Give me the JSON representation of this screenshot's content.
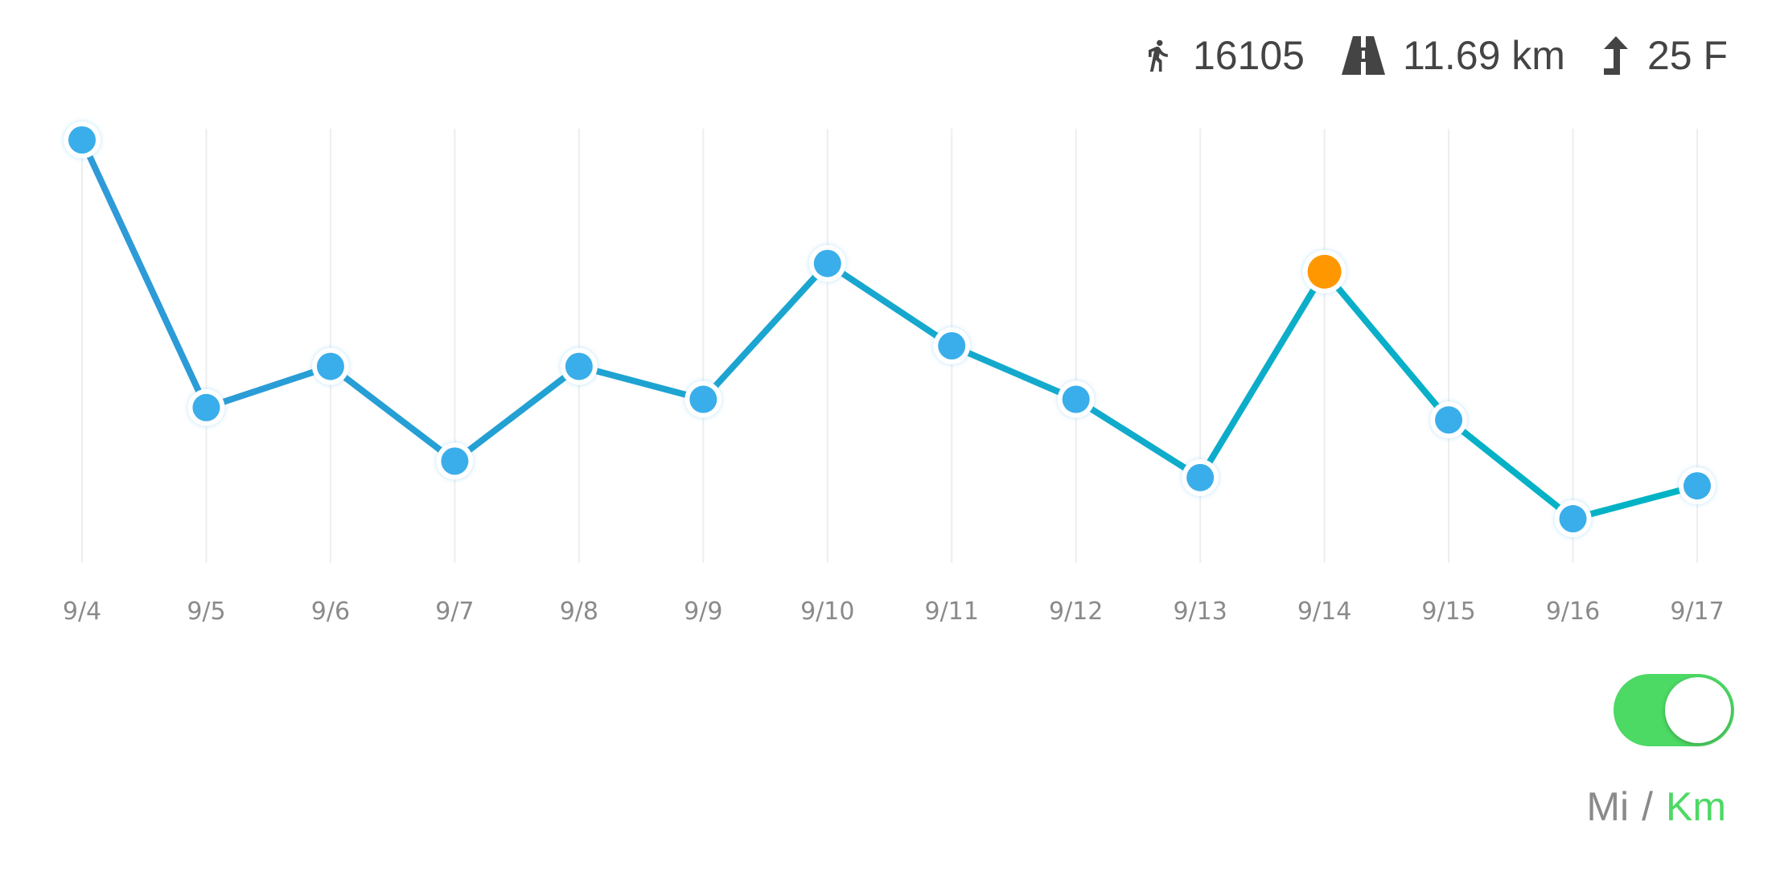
{
  "stats": {
    "steps": "16105",
    "distance": "11.69 km",
    "floors": "25 F"
  },
  "chart_data": {
    "type": "line",
    "categories": [
      "9/4",
      "9/5",
      "9/6",
      "9/7",
      "9/8",
      "9/9",
      "9/10",
      "9/11",
      "9/12",
      "9/13",
      "9/14",
      "9/15",
      "9/16",
      "9/17"
    ],
    "values": [
      100,
      35,
      45,
      22,
      45,
      37,
      70,
      50,
      37,
      18,
      68,
      32,
      8,
      16
    ],
    "highlight_index": 10,
    "ylim": [
      0,
      100
    ],
    "grid": "vertical",
    "colors": {
      "line_start": "#2f9ad8",
      "line_end": "#00b4c4",
      "point": "#3aaeea",
      "highlight": "#ff9800",
      "grid": "#eeeeee"
    }
  },
  "unit_toggle": {
    "on": true,
    "mi_label": "Mi",
    "separator": "/",
    "km_label": "Km",
    "active_color": "#4cd964"
  }
}
